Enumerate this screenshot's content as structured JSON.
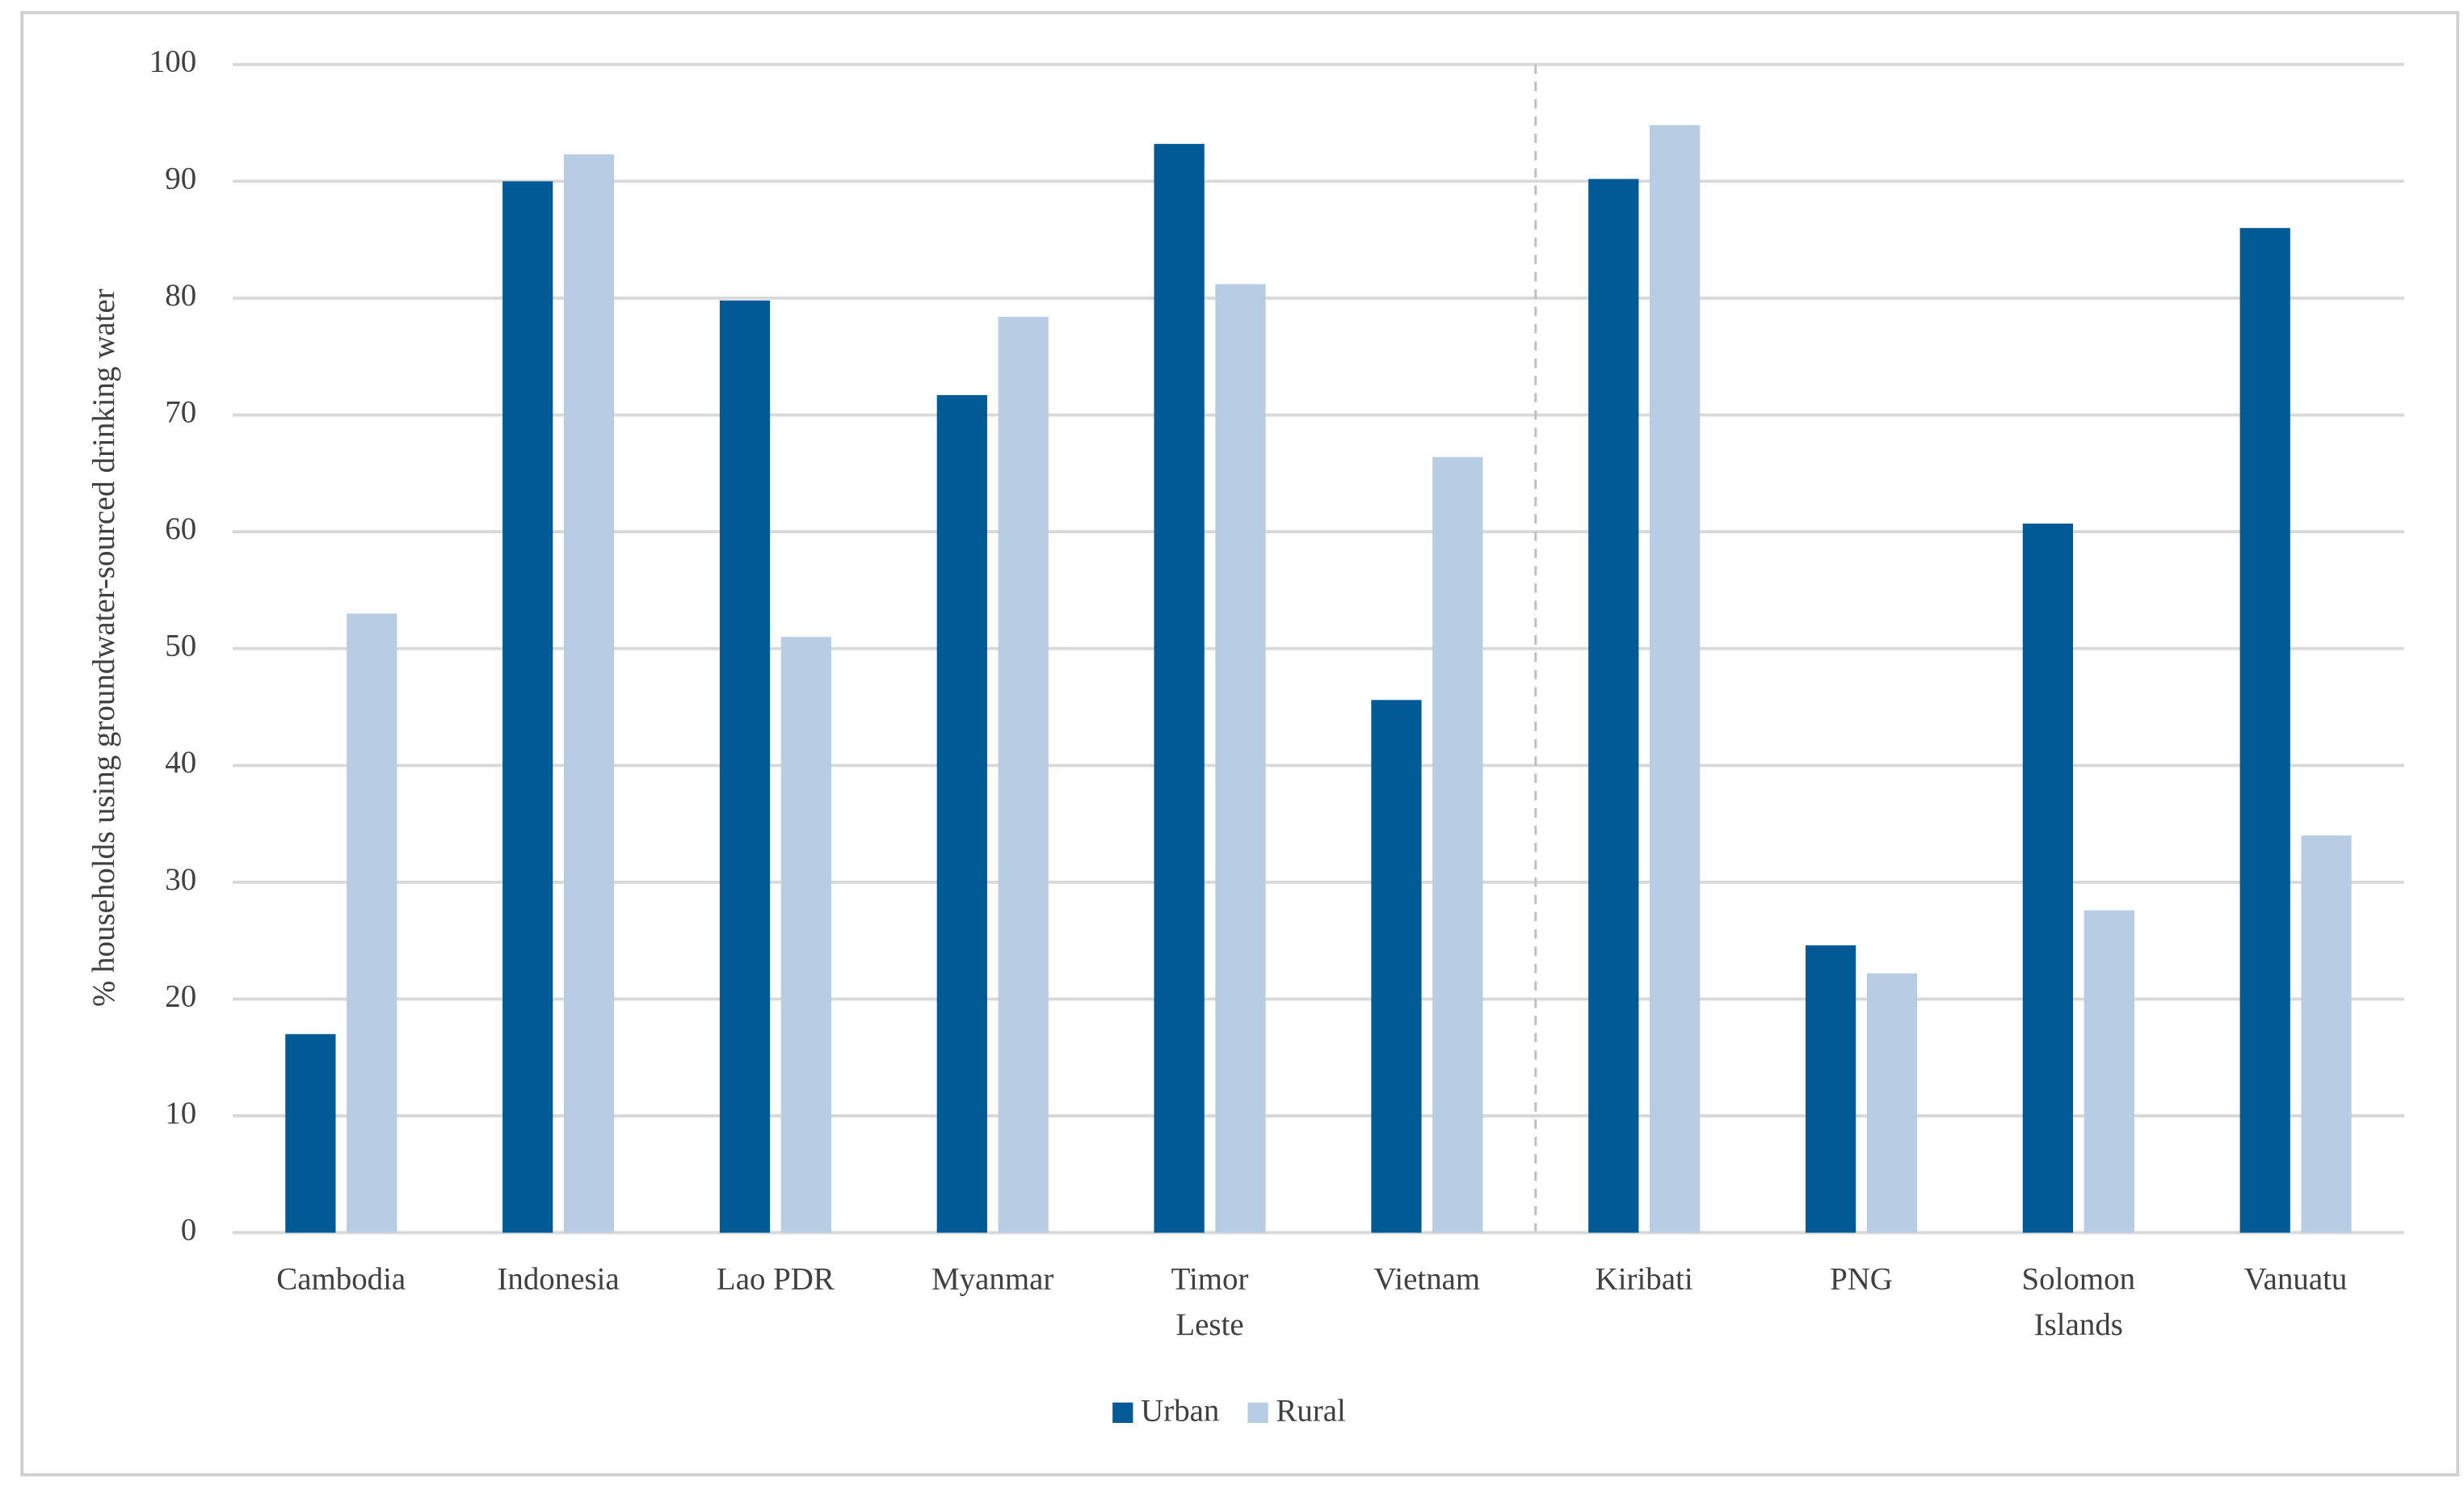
{
  "chart_data": {
    "type": "bar",
    "y_label": "% households using groundwater-sourced drinking water",
    "categories": [
      "Cambodia",
      "Indonesia",
      "Lao PDR",
      "Myanmar",
      "Timor Leste",
      "Vietnam",
      "Kiribati",
      "PNG",
      "Solomon Islands",
      "Vanuatu"
    ],
    "series": [
      {
        "name": "Urban",
        "color": "#005a96",
        "values": [
          17,
          90,
          79.8,
          71.7,
          93.2,
          45.6,
          90.2,
          24.6,
          60.7,
          86
        ]
      },
      {
        "name": "Rural",
        "color": "#b8cce4",
        "values": [
          53,
          92.3,
          51,
          78.4,
          81.2,
          66.4,
          94.8,
          22.2,
          27.6,
          34
        ]
      }
    ],
    "ylim": [
      0,
      100
    ],
    "yticks": [
      0,
      10,
      20,
      30,
      40,
      50,
      60,
      70,
      80,
      90,
      100
    ],
    "grid": true,
    "legend": "bottom"
  }
}
